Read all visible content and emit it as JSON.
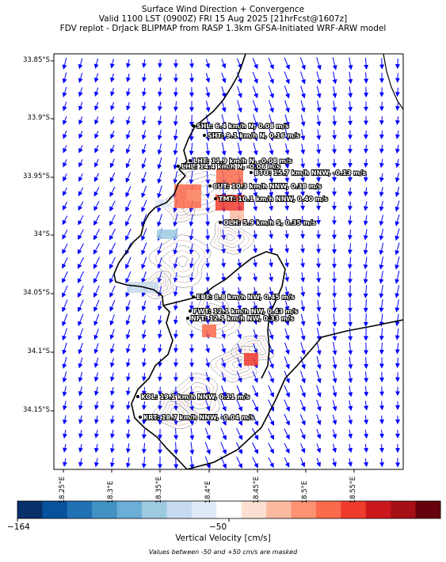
{
  "title_lines": [
    "Surface Wind Direction + Convergence",
    "Valid 1100 LST (0900Z) FRI 15 Aug 2025 [21hrFcst@1607z]",
    "FDV replot - DrJack BLIPMAP from RASP 1.3km GFSA-Initiated WRF-ARW model"
  ],
  "lat_labels": [
    "33.85°S",
    "33.9°S",
    "33.95°S",
    "34°S",
    "34.05°S",
    "34.1°S",
    "34.15°S"
  ],
  "lon_labels": [
    "18.25°E",
    "18.3°E",
    "18.35°E",
    "18.4°E",
    "18.45°E",
    "18.5°E",
    "18.55°E"
  ],
  "colorbar": {
    "min_label": "−164",
    "mid_label": "−50",
    "label": "Vertical Velocity [cm/s]",
    "note": "Values between -50 and +50 cm/s are masked",
    "colors": [
      "#08306b",
      "#08519c",
      "#2171b5",
      "#4292c6",
      "#6baed6",
      "#9ecae1",
      "#c6dbef",
      "#deebf7",
      "#ffffff",
      "#fee0d2",
      "#fcbba1",
      "#fc9272",
      "#fb6a4a",
      "#ef3b2c",
      "#cb181d",
      "#a50f15",
      "#67000d"
    ]
  },
  "stations": [
    {
      "id": "SHL",
      "text": "SHL: 6.4 km/h N, 0.08 m/s"
    },
    {
      "id": "SHT",
      "text": "SHT: 9.1 km/h N, 0.16 m/s"
    },
    {
      "id": "LHT",
      "text": "LHT: 11.9 km/h N, -0.08 m/s"
    },
    {
      "id": "LHL",
      "text": "LHL: 14.4 km/h N, -0.06 m/s"
    },
    {
      "id": "BTO",
      "text": "BTO: 15.7 km/h NNW, -0.13 m/s"
    },
    {
      "id": "CUT",
      "text": "CUT: 10.3 km/h NNW, 0.38 m/s"
    },
    {
      "id": "TMT",
      "text": "TMT: 10.1 km/h NNW, 0.40 m/s"
    },
    {
      "id": "OLH",
      "text": "OLH: 5.9 km/h S, 0.35 m/s"
    },
    {
      "id": "EBT",
      "text": "EBT: 8.8 km/h NW, 0.45 m/s"
    },
    {
      "id": "FWT",
      "text": "FWT: 12.1 km/h NW, 0.43 m/s"
    },
    {
      "id": "NFT",
      "text": "NFT: 12.1 km/h NW, 0.33 m/s"
    },
    {
      "id": "KOL",
      "text": "KOL: 19.1 km/h NNW, 0.11 m/s"
    },
    {
      "id": "KRT",
      "text": "KRT: 18.7 km/h NNW, -0.04 m/s"
    }
  ],
  "vector_color": "#0000ff",
  "coast_color": "#000000"
}
